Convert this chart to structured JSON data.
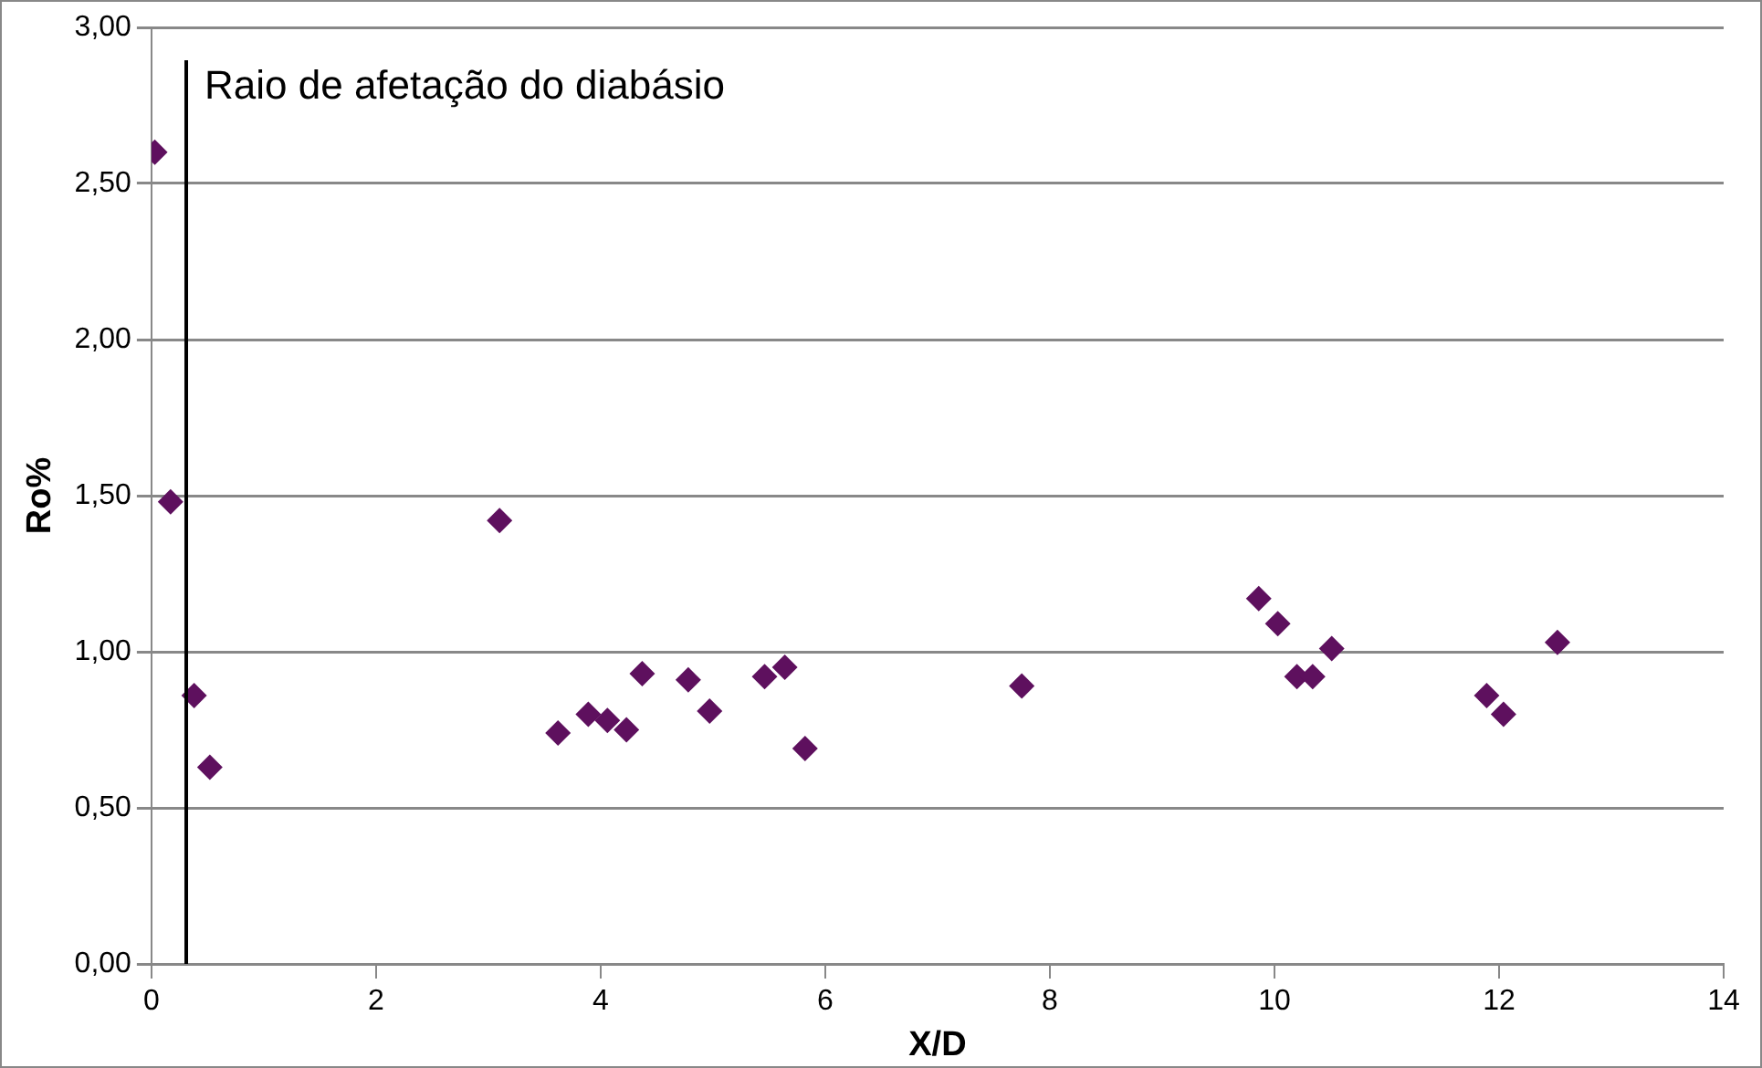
{
  "chart_data": {
    "type": "scatter",
    "xlabel": "X/D",
    "ylabel": "Ro%",
    "x": [
      0.03,
      0.17,
      0.38,
      0.52,
      3.1,
      3.62,
      3.89,
      4.06,
      4.23,
      4.37,
      4.78,
      4.97,
      5.46,
      5.64,
      5.82,
      7.75,
      9.86,
      10.03,
      10.2,
      10.34,
      10.51,
      11.89,
      12.04,
      12.52
    ],
    "series": [
      {
        "color": "#5e105e",
        "values": [
          2.6,
          1.48,
          0.86,
          0.63,
          1.42,
          0.74,
          0.8,
          0.78,
          0.75,
          0.93,
          0.91,
          0.81,
          0.92,
          0.95,
          0.69,
          0.89,
          1.17,
          1.09,
          0.92,
          0.92,
          1.01,
          0.86,
          0.8,
          1.03
        ]
      }
    ],
    "xlim": [
      0,
      14
    ],
    "xticks": [
      0,
      2,
      4,
      6,
      8,
      10,
      12,
      14
    ],
    "ylim": [
      0,
      3
    ],
    "yticks": [
      {
        "value": 0,
        "label": "0,00"
      },
      {
        "value": 0.5,
        "label": "0,50"
      },
      {
        "value": 1,
        "label": "1,00"
      },
      {
        "value": 1.5,
        "label": "1,50"
      },
      {
        "value": 2,
        "label": "2,00"
      },
      {
        "value": 2.5,
        "label": "2,50"
      },
      {
        "value": 3,
        "label": "3,00"
      }
    ],
    "ref_lines": [
      {
        "axis": "x",
        "value": 0.31,
        "label": "Raio de afetação do diabásio",
        "color": "#000000"
      }
    ],
    "grid": "y",
    "legend": false,
    "marker": "diamond"
  }
}
